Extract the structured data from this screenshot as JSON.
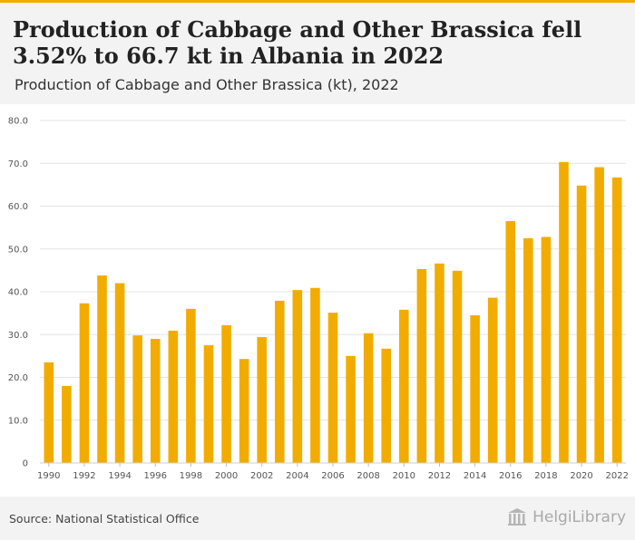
{
  "header": {
    "title": "Production of Cabbage and Other Brassica fell 3.52% to 66.7 kt in Albania in 2022",
    "subtitle": "Production of Cabbage and Other Brassica (kt), 2022"
  },
  "footer": {
    "source": "Source: National Statistical Office",
    "brand": "HelgiLibrary"
  },
  "colors": {
    "bar": "#f2ac00",
    "grid": "#e3e3e3",
    "accent": "#f2ac00"
  },
  "chart_data": {
    "type": "bar",
    "title": "Production of Cabbage and Other Brassica fell 3.52% to 66.7 kt in Albania in 2022",
    "subtitle": "Production of Cabbage and Other Brassica (kt), 2022",
    "xlabel": "",
    "ylabel": "",
    "ylim": [
      0,
      80
    ],
    "yticks": [
      "0",
      "10.0",
      "20.0",
      "30.0",
      "40.0",
      "50.0",
      "60.0",
      "70.0",
      "80.0"
    ],
    "grid": true,
    "categories": [
      "1990",
      "1991",
      "1992",
      "1993",
      "1994",
      "1995",
      "1996",
      "1997",
      "1998",
      "1999",
      "2000",
      "2001",
      "2002",
      "2003",
      "2004",
      "2005",
      "2006",
      "2007",
      "2008",
      "2009",
      "2010",
      "2011",
      "2012",
      "2013",
      "2014",
      "2015",
      "2016",
      "2017",
      "2018",
      "2019",
      "2020",
      "2021",
      "2022"
    ],
    "xtick_labels": [
      "1990",
      "1992",
      "1994",
      "1996",
      "1998",
      "2000",
      "2002",
      "2004",
      "2006",
      "2008",
      "2010",
      "2012",
      "2014",
      "2016",
      "2018",
      "2020",
      "2022"
    ],
    "values": [
      23.5,
      18.0,
      37.3,
      43.8,
      42.0,
      29.8,
      29.0,
      30.9,
      36.0,
      27.5,
      32.2,
      24.3,
      29.4,
      37.9,
      40.4,
      40.9,
      35.1,
      25.0,
      30.3,
      26.7,
      35.8,
      45.3,
      46.6,
      44.9,
      34.5,
      38.6,
      56.5,
      52.5,
      52.8,
      70.3,
      64.8,
      69.1,
      66.7
    ]
  }
}
